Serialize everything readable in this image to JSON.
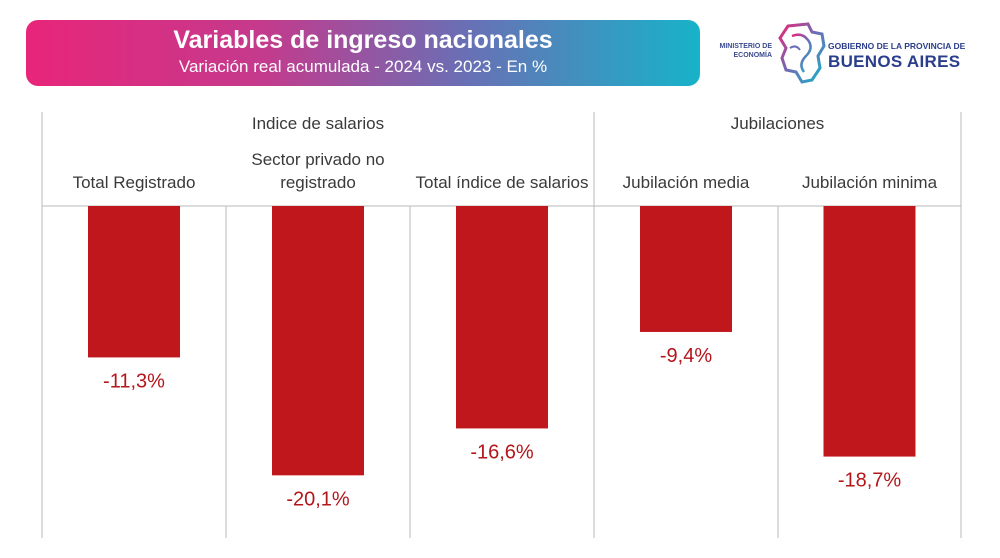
{
  "header": {
    "title": "Variables de ingreso nacionales",
    "subtitle": "Variación real acumulada - 2024 vs. 2023 - En %"
  },
  "logo": {
    "ministry": "MINISTERIO DE ECONOMÍA",
    "government": "GOBIERNO DE LA PROVINCIA DE",
    "province": "BUENOS AIRES"
  },
  "chart_data": {
    "type": "bar",
    "title": "Variables de ingreso nacionales",
    "subtitle": "Variación real acumulada - 2024 vs. 2023 - En %",
    "groups": [
      {
        "label": "Indice de salarios",
        "categories": [
          "Total Registrado",
          "Sector privado no registrado",
          "Total índice de salarios"
        ]
      },
      {
        "label": "Jubilaciones",
        "categories": [
          "Jubilación media",
          "Jubilación minima"
        ]
      }
    ],
    "categories": [
      "Total Registrado",
      "Sector privado no registrado",
      "Total índice de salarios",
      "Jubilación media",
      "Jubilación minima"
    ],
    "values": [
      -11.3,
      -20.1,
      -16.6,
      -9.4,
      -18.7
    ],
    "value_labels": [
      "-11,3%",
      "-20,1%",
      "-16,6%",
      "-9,4%",
      "-18,7%"
    ],
    "ylim": [
      -25,
      0
    ],
    "colors": {
      "bar": "#c0171c",
      "value_text": "#b3161b",
      "grid": "#b8b8b8"
    }
  }
}
